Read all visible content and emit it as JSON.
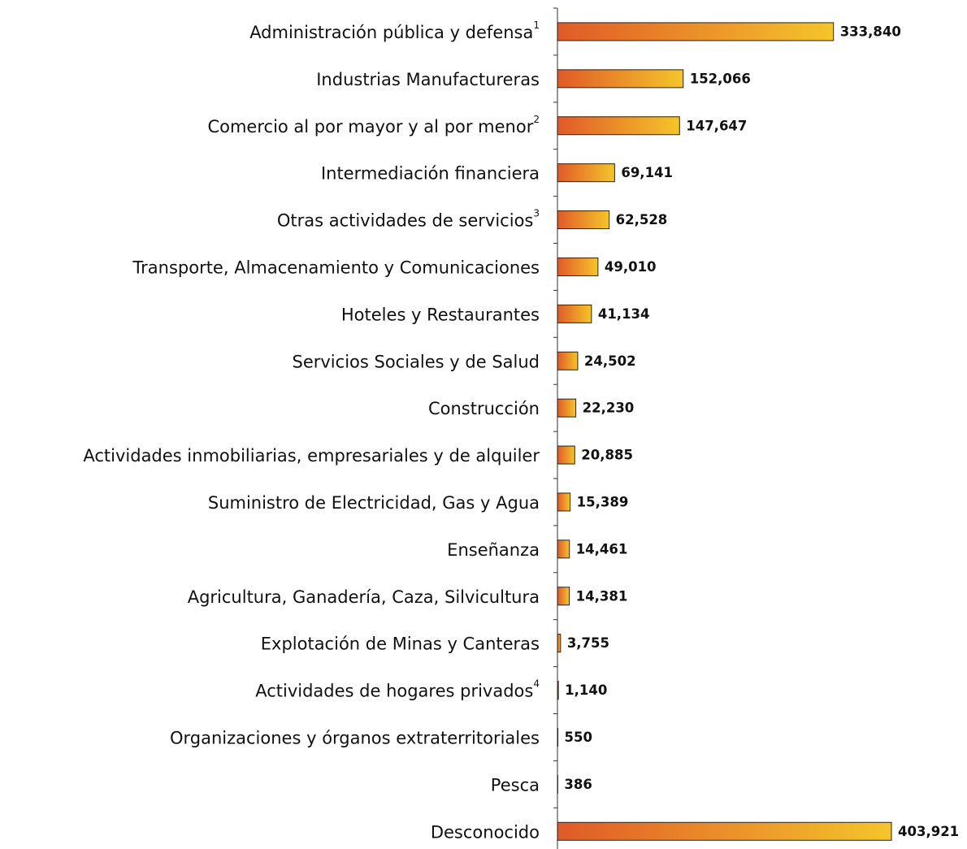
{
  "chart_data": {
    "type": "bar",
    "orientation": "horizontal",
    "categories": [
      "Administración pública y defensa",
      "Industrias Manufactureras",
      "Comercio al por mayor y al por menor",
      "Intermediación financiera",
      "Otras actividades de servicios",
      "Transporte, Almacenamiento y Comunicaciones",
      "Hoteles y Restaurantes",
      "Servicios Sociales y de Salud",
      "Construcción",
      "Actividades inmobiliarias, empresariales y de alquiler",
      "Suministro de Electricidad, Gas y Agua",
      "Enseñanza",
      "Agricultura, Ganadería, Caza, Silvicultura",
      "Explotación de Minas y Canteras",
      "Actividades de hogares privados",
      "Organizaciones y órganos extraterritoriales",
      "Pesca",
      "Desconocido"
    ],
    "category_notes": [
      "1",
      null,
      "2",
      null,
      "3",
      null,
      null,
      null,
      null,
      null,
      null,
      null,
      null,
      null,
      "4",
      null,
      null,
      null
    ],
    "values": [
      333840,
      152066,
      147647,
      69141,
      62528,
      49010,
      41134,
      24502,
      22230,
      20885,
      15389,
      14461,
      14381,
      3755,
      1140,
      550,
      386,
      403921
    ],
    "value_labels": [
      "333,840",
      "152,066",
      "147,647",
      "69,141",
      "62,528",
      "49,010",
      "41,134",
      "24,502",
      "22,230",
      "20,885",
      "15,389",
      "14,461",
      "14,381",
      "3,755",
      "1,140",
      "550",
      "386",
      "403,921"
    ],
    "color": [
      "#e05a28",
      "#f5c52a"
    ]
  }
}
